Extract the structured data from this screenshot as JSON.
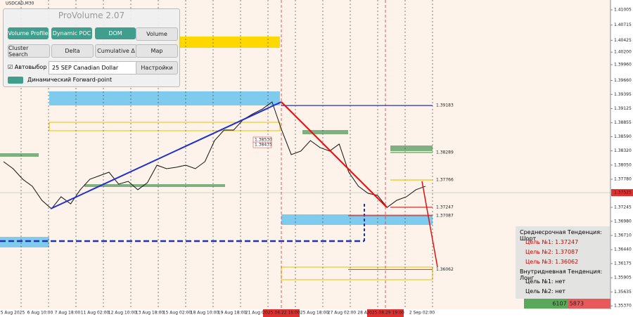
{
  "symbol": "USDCAD,M30",
  "panel": {
    "title": "ProVolume 2.07",
    "buttons": [
      "Volume Profile",
      "Dynamic POC",
      "DOM",
      "Volume",
      "Cluster Search",
      "Delta",
      "Cumulative Δ",
      "Map"
    ],
    "auto_label": "Автовыбор",
    "instrument": "25 SEP Canadian Dollar",
    "settings": "Настройки",
    "forward_point": "Динамический Forward-point"
  },
  "chart": {
    "ylim": [
      1.35305,
      1.41192
    ],
    "yticks": [
      1.41005,
      1.40715,
      1.40425,
      {
        "value": 1.402,
        "label": "1.40200"
      },
      {
        "value": 1.3996,
        "label": "1.39960"
      },
      {
        "value": 1.3966,
        "label": "1.39660"
      },
      1.39395,
      1.39125,
      1.38855,
      {
        "value": 1.3859,
        "label": "1.38590"
      },
      {
        "value": 1.3832,
        "label": "1.38320"
      },
      {
        "value": 1.3805,
        "label": "1.38050"
      },
      {
        "value": 1.3778,
        "label": "1.37780"
      },
      1.37245,
      {
        "value": 1.3698,
        "label": "1.36980"
      },
      {
        "value": 1.3671,
        "label": "1.36710"
      },
      {
        "value": 1.3644,
        "label": "1.36440"
      },
      1.36175,
      1.35905,
      1.35635,
      {
        "value": 1.3537,
        "label": "1.35370"
      }
    ],
    "current_price": 1.37525,
    "time_labels": [
      "5 Aug 2025",
      "6 Aug 10:00",
      "7 Aug 18:00",
      "11 Aug 02:00",
      "12 Aug 10:00",
      "13 Aug 18:00",
      "15 Aug 02:00",
      "18 Aug 10:00",
      "19 Aug 18:00",
      "21 Aug 02:00",
      "25 Aug 18:00",
      "27 Aug 02:00",
      "28 Au",
      "2 Sep 02:00"
    ],
    "time_highlights": [
      "2025.08.22 16:00",
      "2025.08.29 19:00"
    ],
    "prices": [
      1.38115,
      1.37981,
      1.3778,
      1.37647,
      1.37379,
      1.37218,
      1.37446,
      1.37312,
      1.3758,
      1.3778,
      1.37847,
      1.37914,
      1.37687,
      1.3774,
      1.3758,
      1.37714,
      1.38048,
      1.37981,
      1.38008,
      1.38048,
      1.37981,
      1.38115,
      1.38516,
      1.38717,
      1.38717,
      1.38918,
      1.39025,
      1.39118,
      1.39252,
      1.38717,
      1.38249,
      1.38316,
      1.38516,
      1.38383,
      1.38316,
      1.3845,
      1.37914,
      1.37647,
      1.37513,
      1.37473,
      1.37245,
      1.37379,
      1.37446,
      1.3758,
      1.37647
    ],
    "levels": [
      1.39183,
      1.38289,
      1.37766,
      1.37247,
      1.37087,
      1.36062
    ],
    "box_labels": [
      {
        "value": 1.3853,
        "label": "1.38530"
      },
      1.38435
    ]
  },
  "info": {
    "lines": [
      "Среднесрочная Тенденция: Шорт",
      "Цель №1: 1.37247",
      "Цель №2: 1.37087",
      "Цель №3: 1.36062",
      "Внутридневная Тенденция: Лонг",
      "Цель №1: нет",
      "Цель №2: нет"
    ]
  },
  "volume_bar": {
    "buy": 6107,
    "sell": 5873
  }
}
